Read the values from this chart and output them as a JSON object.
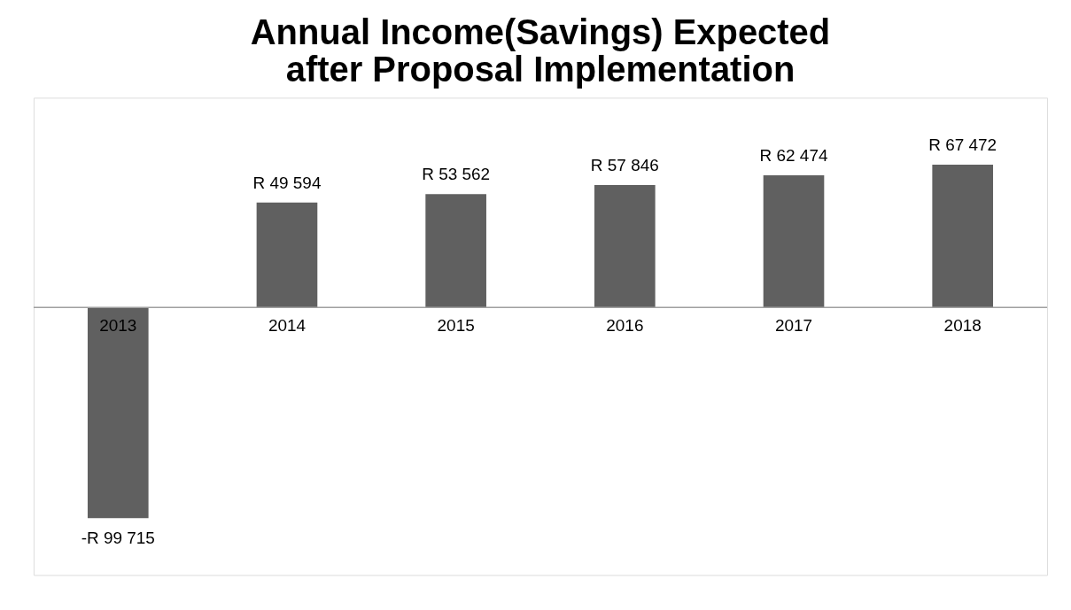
{
  "chart_data": {
    "type": "bar",
    "title": "Annual Income(Savings) Expected after Proposal Implementation",
    "categories": [
      "2013",
      "2014",
      "2015",
      "2016",
      "2017",
      "2018"
    ],
    "values": [
      -99715,
      49594,
      53562,
      57846,
      62474,
      67472
    ],
    "value_labels": [
      "-R 99 715",
      "R 49 594",
      "R 53 562",
      "R 57 846",
      "R 62 474",
      "R 67 472"
    ],
    "color": "#606060"
  }
}
